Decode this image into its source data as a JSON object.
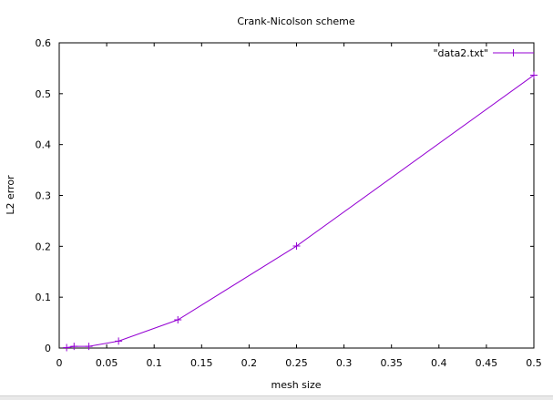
{
  "chart_data": {
    "type": "line",
    "title": "Crank-Nicolson scheme",
    "xlabel": "mesh size",
    "ylabel": "L2 error",
    "xlim": [
      0,
      0.5
    ],
    "ylim": [
      0,
      0.6
    ],
    "xticks": [
      "0",
      "0.05",
      "0.1",
      "0.15",
      "0.2",
      "0.25",
      "0.3",
      "0.35",
      "0.4",
      "0.45",
      "0.5"
    ],
    "yticks": [
      "0",
      "0.1",
      "0.2",
      "0.3",
      "0.4",
      "0.5",
      "0.6"
    ],
    "grid": false,
    "legend_position": "top-right",
    "series": [
      {
        "name": "\"data2.txt\"",
        "color": "#9400d3",
        "marker": "plus",
        "x": [
          0.0078125,
          0.015625,
          0.03125,
          0.0625,
          0.125,
          0.25,
          0.5
        ],
        "y": [
          0.0008,
          0.0033,
          0.0034,
          0.0137,
          0.0555,
          0.2005,
          0.5365
        ]
      }
    ]
  }
}
